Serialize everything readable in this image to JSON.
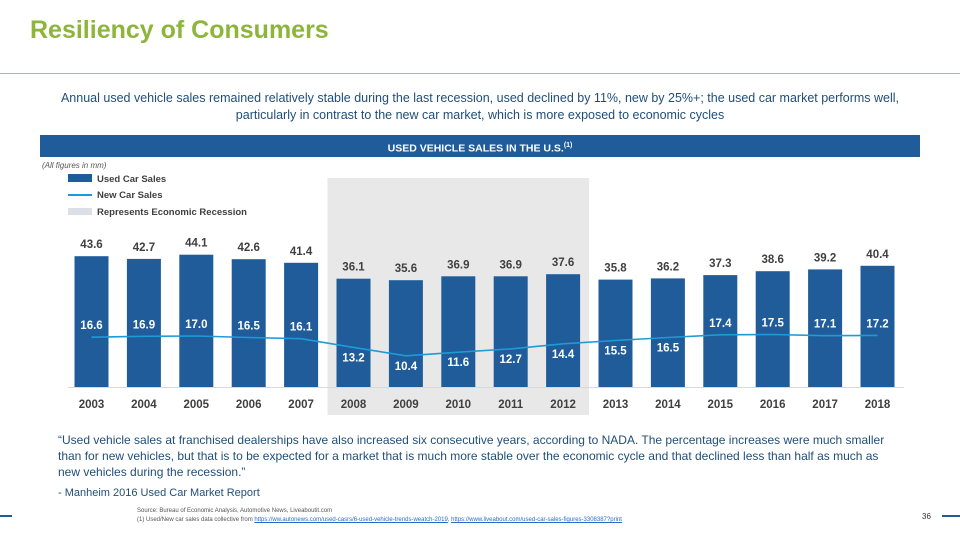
{
  "title": "Resiliency of Consumers",
  "subtitle": "Annual used vehicle sales remained relatively stable during the last recession, used declined by 11%, new by 25%+; the used car market performs well, particularly in contrast to the new car market, which is more exposed to economic cycles",
  "banner": {
    "text": "USED VEHICLE SALES IN THE U.S.",
    "sup": "(1)"
  },
  "figures_note": "(All figures in mm)",
  "colors": {
    "title": "#8db53b",
    "bar": "#1f5c99",
    "line": "#1e9bd7",
    "recession": "#e8e8e8",
    "text": "#1f4e79"
  },
  "chart_data": {
    "type": "bar",
    "categories": [
      "2003",
      "2004",
      "2005",
      "2006",
      "2007",
      "2008",
      "2009",
      "2010",
      "2011",
      "2012",
      "2013",
      "2014",
      "2015",
      "2016",
      "2017",
      "2018"
    ],
    "series": [
      {
        "name": "Used Car Sales",
        "type": "bar",
        "values": [
          43.6,
          42.7,
          44.1,
          42.6,
          41.4,
          36.1,
          35.6,
          36.9,
          36.9,
          37.6,
          35.8,
          36.2,
          37.3,
          38.6,
          39.2,
          40.4
        ]
      },
      {
        "name": "New Car Sales",
        "type": "line",
        "values": [
          16.6,
          16.9,
          17.0,
          16.5,
          16.1,
          13.2,
          10.4,
          11.6,
          12.7,
          14.4,
          15.5,
          16.5,
          17.4,
          17.5,
          17.1,
          17.2
        ]
      }
    ],
    "recession": {
      "label": "Represents Economic Recession",
      "from": "2008",
      "to": "2012"
    },
    "legend_position": "top-left",
    "ylim": [
      0,
      45
    ],
    "grid": false
  },
  "quote": "“Used vehicle sales at franchised dealerships  have also increased six consecutive years, according to NADA. The percentage increases were much smaller  than for new vehicles, but that is to be expected for a market that is much more stable over the economic cycle and that declined  less  than half as much as new vehicles during the recession.”",
  "attribution": "- Manheim 2016 Used Car Market Report",
  "source": {
    "line1": "Source: Bureau of Economic Analysis, Automotive News, Liveaboutit.com",
    "line2_prefix": "(1) Used/New car sales data collective from ",
    "link1": "https://ww.autonews.com/used-casrs/6-used-vehicle-trends-weatch-2019",
    "separator": ", ",
    "link2": "https://www.liveabout.com/used-car-sales-figures-3308387?print"
  },
  "page_number": "36"
}
